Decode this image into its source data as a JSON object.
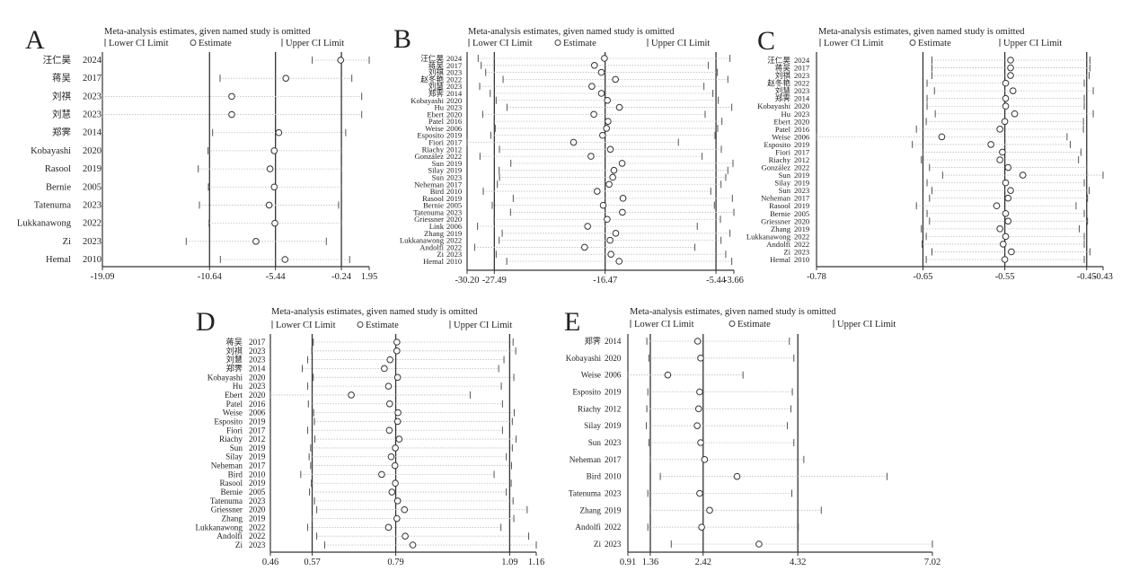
{
  "chart_data": [
    {
      "type": "forest-sensitivity",
      "panel_label": "A",
      "title": "Meta-analysis estimates, given named study is omitted",
      "legend": {
        "lower": "Lower CI Limit",
        "estimate": "Estimate",
        "upper": "Upper CI Limit"
      },
      "xlim": [
        -19.09,
        1.95
      ],
      "ref_lines": [
        -10.64,
        -5.44,
        -0.24
      ],
      "ticks": [
        -19.09,
        -10.64,
        -5.44,
        -0.24,
        1.95
      ],
      "tick_labels": [
        "-19.09",
        "-10.64",
        "-5.44",
        "-0.24",
        "1.95"
      ],
      "columns": [
        "study",
        "year",
        "lower",
        "estimate",
        "upper"
      ],
      "rows": [
        [
          "汪仁昊",
          "2024",
          -2.54,
          -0.3,
          1.95
        ],
        [
          "蒋吴",
          "2017",
          -9.81,
          -4.62,
          0.58
        ],
        [
          "刘祺",
          "2023",
          -19.09,
          -8.89,
          1.36
        ],
        [
          "刘慧",
          "2023",
          -19.09,
          -8.89,
          1.36
        ],
        [
          "郑霁",
          "2014",
          -10.4,
          -5.18,
          0.1
        ],
        [
          "Kobayashi",
          "2020",
          -10.76,
          -5.54,
          -0.25
        ],
        [
          "Rasool",
          "2019",
          -11.53,
          -5.87,
          -0.25
        ],
        [
          "Bernie",
          "2005",
          -10.73,
          -5.54,
          -0.25
        ],
        [
          "Tatenuma",
          "2023",
          -11.44,
          -5.94,
          -0.46
        ],
        [
          "Lukkanawong",
          "2022",
          -10.68,
          -5.49,
          -0.25
        ],
        [
          "Zi",
          "2023",
          -12.48,
          -6.98,
          -1.43
        ],
        [
          "Hemal",
          "2010",
          -9.79,
          -4.69,
          0.41
        ]
      ]
    },
    {
      "type": "forest-sensitivity",
      "panel_label": "B",
      "title": "Meta-analysis estimates, given named study is omitted",
      "legend": {
        "lower": "Lower CI Limit",
        "estimate": "Estimate",
        "upper": "Upper CI Limit"
      },
      "xlim": [
        -30.2,
        -3.66
      ],
      "ref_lines": [
        -27.49,
        -16.47,
        -5.44
      ],
      "ticks": [
        -30.2,
        -27.49,
        -16.47,
        -5.44,
        -3.66
      ],
      "tick_labels": [
        "-30.20",
        "-27.49",
        "-16.47",
        "-5.44",
        "-3.66"
      ],
      "columns": [
        "study",
        "year",
        "lower",
        "estimate",
        "upper"
      ],
      "rows": [
        [
          "汪仁昊",
          "2024",
          -29.1,
          -16.54,
          -4.05
        ],
        [
          "蒋吴",
          "2017",
          -28.8,
          -17.53,
          -6.2
        ],
        [
          "刘祺",
          "2023",
          -28.35,
          -16.84,
          -5.3
        ],
        [
          "赵冬艳",
          "2022",
          -26.62,
          -15.44,
          -4.26
        ],
        [
          "刘慧",
          "2023",
          -28.95,
          -17.79,
          -6.64
        ],
        [
          "郑霁",
          "2014",
          -27.9,
          -16.84,
          -5.75
        ],
        [
          "Kobayashi",
          "2020",
          -27.31,
          -16.24,
          -5.21
        ],
        [
          "Hu",
          "2023",
          -26.23,
          -15.05,
          -3.87
        ],
        [
          "Ebert",
          "2020",
          -28.65,
          -17.59,
          -6.52
        ],
        [
          "Patel",
          "2016",
          -27.52,
          -16.18,
          -4.85
        ],
        [
          "Weise",
          "2006",
          -27.4,
          -16.33,
          -5.27
        ],
        [
          "Esposito",
          "2019",
          -27.84,
          -16.72,
          -5.54
        ],
        [
          "Fiori",
          "2017",
          -30.2,
          -19.61,
          -9.18
        ],
        [
          "Riachy",
          "2012",
          -26.98,
          -15.95,
          -4.91
        ],
        [
          "González",
          "2022",
          -28.92,
          -17.88,
          -6.82
        ],
        [
          "Sun",
          "2019",
          -25.85,
          -14.78,
          -3.75
        ],
        [
          "Silay",
          "2019",
          -27.01,
          -15.59,
          -4.26
        ],
        [
          "Sun",
          "2023",
          -26.98,
          -15.71,
          -4.47
        ],
        [
          "Neheman",
          "2017",
          -27.19,
          -16.07,
          -4.94
        ],
        [
          "Bird",
          "2010",
          -28.59,
          -17.26,
          -5.96
        ],
        [
          "Rasool",
          "2019",
          -25.61,
          -14.69,
          -3.81
        ],
        [
          "Bernie",
          "2005",
          -27.7,
          -16.66,
          -5.6
        ],
        [
          "Tatenuma",
          "2023",
          -25.88,
          -14.75,
          -3.66
        ],
        [
          "Griessner",
          "2020",
          -27.52,
          -16.27,
          -5.0
        ],
        [
          "Link",
          "2006",
          -29.16,
          -18.21,
          -7.3
        ],
        [
          "Zhang",
          "2019",
          -26.71,
          -15.41,
          -4.05
        ],
        [
          "Lukkanawong",
          "2022",
          -27.01,
          -15.98,
          -4.94
        ],
        [
          "Andolfi",
          "2022",
          -29.45,
          -18.51,
          -7.54
        ],
        [
          "Zi",
          "2023",
          -27.31,
          -15.89,
          -4.47
        ],
        [
          "Hemal",
          "2010",
          -26.26,
          -15.08,
          -3.87
        ]
      ]
    },
    {
      "type": "forest-sensitivity",
      "panel_label": "C",
      "title": "Meta-analysis estimates, given named study is omitted",
      "legend": {
        "lower": "Lower CI Limit",
        "estimate": "Estimate",
        "upper": "Upper CI Limit"
      },
      "xlim": [
        -0.78,
        -0.43
      ],
      "ref_lines": [
        -0.65,
        -0.55,
        -0.45
      ],
      "ticks": [
        -0.78,
        -0.65,
        -0.55,
        -0.45,
        -0.43
      ],
      "tick_labels": [
        "-0.78",
        "-0.65",
        "-0.55",
        "-0.45",
        "-0.43"
      ],
      "columns": [
        "study",
        "year",
        "lower",
        "estimate",
        "upper"
      ],
      "rows": [
        [
          "汪仁昊",
          "2024",
          -0.639,
          -0.543,
          -0.446
        ],
        [
          "蒋吴",
          "2017",
          -0.639,
          -0.543,
          -0.446
        ],
        [
          "刘祺",
          "2023",
          -0.639,
          -0.543,
          -0.447
        ],
        [
          "赵冬艳",
          "2022",
          -0.645,
          -0.549,
          -0.453
        ],
        [
          "刘慧",
          "2023",
          -0.636,
          -0.54,
          -0.442
        ],
        [
          "郑霁",
          "2014",
          -0.645,
          -0.549,
          -0.453
        ],
        [
          "Kobayashi",
          "2020",
          -0.645,
          -0.549,
          -0.453
        ],
        [
          "Hu",
          "2023",
          -0.635,
          -0.538,
          -0.442
        ],
        [
          "Ebert",
          "2020",
          -0.646,
          -0.55,
          -0.454
        ],
        [
          "Patel",
          "2016",
          -0.658,
          -0.556,
          -0.454
        ],
        [
          "Weise",
          "2006",
          -0.78,
          -0.627,
          -0.474
        ],
        [
          "Esposito",
          "2019",
          -0.663,
          -0.567,
          -0.47
        ],
        [
          "Fiori",
          "2017",
          -0.65,
          -0.553,
          -0.457
        ],
        [
          "Riachy",
          "2012",
          -0.652,
          -0.556,
          -0.46
        ],
        [
          "González",
          "2022",
          -0.642,
          -0.546,
          -0.45
        ],
        [
          "Sun",
          "2019",
          -0.626,
          -0.528,
          -0.43
        ],
        [
          "Silay",
          "2019",
          -0.645,
          -0.549,
          -0.453
        ],
        [
          "Sun",
          "2023",
          -0.639,
          -0.543,
          -0.447
        ],
        [
          "Neheman",
          "2017",
          -0.642,
          -0.546,
          -0.449
        ],
        [
          "Rasool",
          "2019",
          -0.658,
          -0.56,
          -0.463
        ],
        [
          "Bernie",
          "2005",
          -0.645,
          -0.549,
          -0.453
        ],
        [
          "Griessner",
          "2020",
          -0.642,
          -0.546,
          -0.449
        ],
        [
          "Zhang",
          "2019",
          -0.652,
          -0.556,
          -0.459
        ],
        [
          "Lukkanawong",
          "2022",
          -0.646,
          -0.549,
          -0.453
        ],
        [
          "Andolfi",
          "2022",
          -0.651,
          -0.552,
          -0.453
        ],
        [
          "Zi",
          "2023",
          -0.639,
          -0.542,
          -0.446
        ],
        [
          "Hemal",
          "2010",
          -0.646,
          -0.55,
          -0.453
        ]
      ]
    },
    {
      "type": "forest-sensitivity",
      "panel_label": "D",
      "title": "Meta-analysis estimates, given named study is omitted",
      "legend": {
        "lower": "Lower CI Limit",
        "estimate": "Estimate",
        "upper": "Upper CI Limit"
      },
      "xlim": [
        0.46,
        1.16
      ],
      "ref_lines": [
        0.57,
        0.79,
        1.09
      ],
      "ticks": [
        0.46,
        0.57,
        0.79,
        1.09,
        1.16
      ],
      "tick_labels": [
        "0.46",
        "0.57",
        "0.79",
        "1.09",
        "1.16"
      ],
      "columns": [
        "study",
        "year",
        "lower",
        "estimate",
        "upper"
      ],
      "rows": [
        [
          "蒋吴",
          "2017",
          0.573,
          0.793,
          1.099
        ],
        [
          "刘祺",
          "2023",
          0.569,
          0.793,
          1.106
        ],
        [
          "刘慧",
          "2023",
          0.558,
          0.775,
          1.075
        ],
        [
          "郑霁",
          "2014",
          0.544,
          0.76,
          1.061
        ],
        [
          "Kobayashi",
          "2020",
          0.573,
          0.795,
          1.101
        ],
        [
          "Hu",
          "2023",
          0.558,
          0.771,
          1.068
        ],
        [
          "Ebert",
          "2020",
          0.46,
          0.673,
          0.986
        ],
        [
          "Patel",
          "2016",
          0.56,
          0.774,
          1.071
        ],
        [
          "Weise",
          "2006",
          0.574,
          0.796,
          1.102
        ],
        [
          "Esposito",
          "2019",
          0.576,
          0.795,
          1.097
        ],
        [
          "Fiori",
          "2017",
          0.558,
          0.773,
          1.071
        ],
        [
          "Riachy",
          "2012",
          0.577,
          0.799,
          1.107
        ],
        [
          "Sun",
          "2019",
          0.566,
          0.789,
          1.097
        ],
        [
          "Silay",
          "2019",
          0.562,
          0.778,
          1.081
        ],
        [
          "Neheman",
          "2017",
          0.566,
          0.788,
          1.095
        ],
        [
          "Bird",
          "2010",
          0.54,
          0.753,
          1.049
        ],
        [
          "Rasool",
          "2019",
          0.568,
          0.789,
          1.094
        ],
        [
          "Bernie",
          "2005",
          0.563,
          0.78,
          1.081
        ],
        [
          "Tatenuma",
          "2023",
          0.576,
          0.795,
          1.099
        ],
        [
          "Griessner",
          "2020",
          0.582,
          0.813,
          1.136
        ],
        [
          "Zhang",
          "2019",
          0.57,
          0.793,
          1.101
        ],
        [
          "Lukkanawong",
          "2022",
          0.558,
          0.771,
          1.067
        ],
        [
          "Andolfi",
          "2022",
          0.582,
          0.815,
          1.14
        ],
        [
          "Zi",
          "2023",
          0.603,
          0.835,
          1.16
        ]
      ]
    },
    {
      "type": "forest-sensitivity",
      "panel_label": "E",
      "title": "Meta-analysis estimates, given named study is omitted",
      "legend": {
        "lower": "Lower CI Limit",
        "estimate": "Estimate",
        "upper": "Upper CI Limit"
      },
      "xlim": [
        0.91,
        7.02
      ],
      "ref_lines": [
        1.36,
        2.42,
        4.32
      ],
      "ticks": [
        0.91,
        1.36,
        2.42,
        4.32,
        7.02
      ],
      "tick_labels": [
        "0.91",
        "1.36",
        "2.42",
        "4.32",
        "7.02"
      ],
      "columns": [
        "study",
        "year",
        "lower",
        "estimate",
        "upper"
      ],
      "rows": [
        [
          "郑霁",
          "2014",
          1.29,
          2.31,
          4.15
        ],
        [
          "Kobayashi",
          "2020",
          1.33,
          2.37,
          4.24
        ],
        [
          "Weise",
          "2006",
          0.91,
          1.71,
          3.22
        ],
        [
          "Esposito",
          "2019",
          1.31,
          2.35,
          4.21
        ],
        [
          "Riachy",
          "2012",
          1.29,
          2.33,
          4.18
        ],
        [
          "Silay",
          "2019",
          1.28,
          2.3,
          4.11
        ],
        [
          "Sun",
          "2023",
          1.33,
          2.37,
          4.24
        ],
        [
          "Neheman",
          "2017",
          1.36,
          2.45,
          4.44
        ],
        [
          "Bird",
          "2010",
          1.56,
          3.1,
          6.11
        ],
        [
          "Tatenuma",
          "2023",
          1.31,
          2.35,
          4.2
        ],
        [
          "Zhang",
          "2019",
          1.36,
          2.55,
          4.79
        ],
        [
          "Andolfi",
          "2022",
          1.31,
          2.39,
          4.33
        ],
        [
          "Zi",
          "2023",
          1.78,
          3.54,
          7.02
        ]
      ]
    }
  ]
}
